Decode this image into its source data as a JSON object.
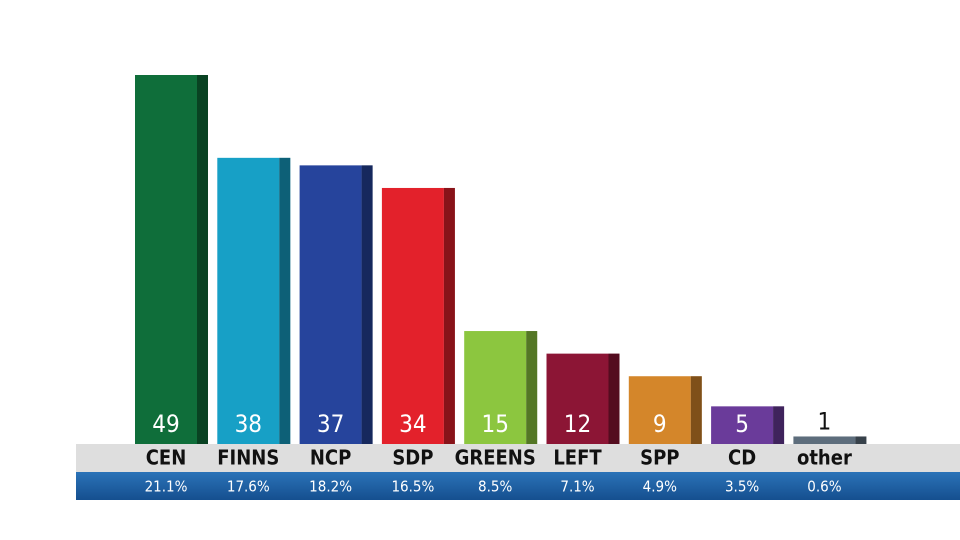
{
  "chart_data": {
    "type": "bar",
    "categories": [
      "CEN",
      "FINNS",
      "NCP",
      "SDP",
      "GREENS",
      "LEFT",
      "SPP",
      "CD",
      "other"
    ],
    "values": [
      49,
      38,
      37,
      34,
      15,
      12,
      9,
      5,
      1
    ],
    "colors": [
      "#0f6e3a",
      "#17a0c6",
      "#26449c",
      "#e3212b",
      "#8cc63f",
      "#8c1535",
      "#d4862a",
      "#6a3b9a",
      "#5d6d7c"
    ],
    "share_labels": [
      "21.1%",
      "17.6%",
      "18.2%",
      "16.5%",
      "8.5%",
      "7.1%",
      "4.9%",
      "3.5%",
      "0.6%"
    ]
  }
}
